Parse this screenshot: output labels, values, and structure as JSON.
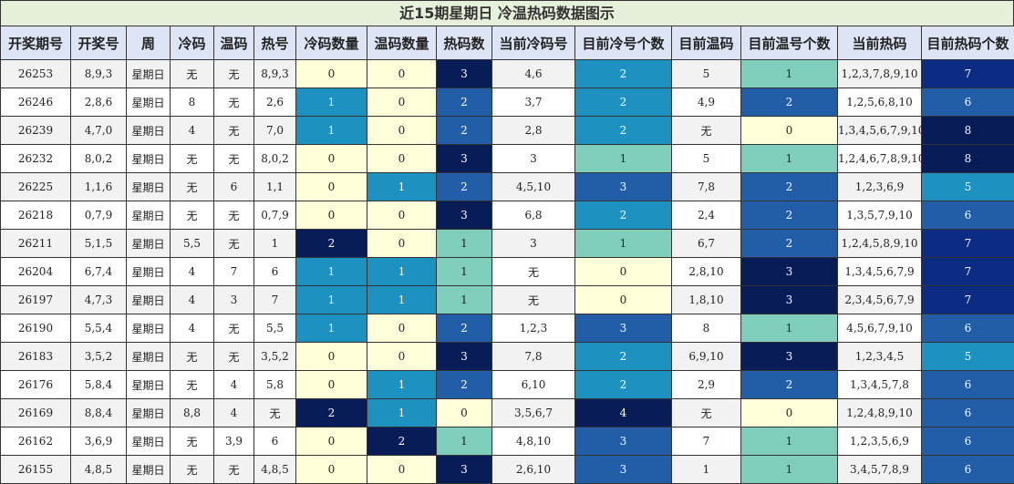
{
  "chart_data": {
    "type": "table",
    "title": "近15期星期日 冷温热码数据图示",
    "columns": [
      "开奖期号",
      "开奖号",
      "周",
      "冷码",
      "温码",
      "热号",
      "冷码数量",
      "温码数量",
      "热码数",
      "当前冷码号",
      "目前冷号个数",
      "目前温码",
      "目前温号个数",
      "当前热码",
      "目前热码个数"
    ],
    "rows": [
      [
        "26253",
        "8,9,3",
        "星期日",
        "无",
        "无",
        "8,9,3",
        "0",
        "0",
        "3",
        "4,6",
        "2",
        "5",
        "1",
        "1,2,3,7,8,9,10",
        "7"
      ],
      [
        "26246",
        "2,8,6",
        "星期日",
        "8",
        "无",
        "2,6",
        "1",
        "0",
        "2",
        "3,7",
        "2",
        "4,9",
        "2",
        "1,2,5,6,8,10",
        "6"
      ],
      [
        "26239",
        "4,7,0",
        "星期日",
        "4",
        "无",
        "7,0",
        "1",
        "0",
        "2",
        "2,8",
        "2",
        "无",
        "0",
        "1,3,4,5,6,7,9,10",
        "8"
      ],
      [
        "26232",
        "8,0,2",
        "星期日",
        "无",
        "无",
        "8,0,2",
        "0",
        "0",
        "3",
        "3",
        "1",
        "5",
        "1",
        "1,2,4,6,7,8,9,10",
        "8"
      ],
      [
        "26225",
        "1,1,6",
        "星期日",
        "无",
        "6",
        "1,1",
        "0",
        "1",
        "2",
        "4,5,10",
        "3",
        "7,8",
        "2",
        "1,2,3,6,9",
        "5"
      ],
      [
        "26218",
        "0,7,9",
        "星期日",
        "无",
        "无",
        "0,7,9",
        "0",
        "0",
        "3",
        "6,8",
        "2",
        "2,4",
        "2",
        "1,3,5,7,9,10",
        "6"
      ],
      [
        "26211",
        "5,1,5",
        "星期日",
        "5,5",
        "无",
        "1",
        "2",
        "0",
        "1",
        "3",
        "1",
        "6,7",
        "2",
        "1,2,4,5,8,9,10",
        "7"
      ],
      [
        "26204",
        "6,7,4",
        "星期日",
        "4",
        "7",
        "6",
        "1",
        "1",
        "1",
        "无",
        "0",
        "2,8,10",
        "3",
        "1,3,4,5,6,7,9",
        "7"
      ],
      [
        "26197",
        "4,7,3",
        "星期日",
        "4",
        "3",
        "7",
        "1",
        "1",
        "1",
        "无",
        "0",
        "1,8,10",
        "3",
        "2,3,4,5,6,7,9",
        "7"
      ],
      [
        "26190",
        "5,5,4",
        "星期日",
        "4",
        "无",
        "5,5",
        "1",
        "0",
        "2",
        "1,2,3",
        "3",
        "8",
        "1",
        "4,5,6,7,9,10",
        "6"
      ],
      [
        "26183",
        "3,5,2",
        "星期日",
        "无",
        "无",
        "3,5,2",
        "0",
        "0",
        "3",
        "7,8",
        "2",
        "6,9,10",
        "3",
        "1,2,3,4,5",
        "5"
      ],
      [
        "26176",
        "5,8,4",
        "星期日",
        "无",
        "4",
        "5,8",
        "0",
        "1",
        "2",
        "6,10",
        "2",
        "2,9",
        "2",
        "1,3,4,5,7,8",
        "6"
      ],
      [
        "26169",
        "8,8,4",
        "星期日",
        "8,8",
        "4",
        "无",
        "2",
        "1",
        "0",
        "3,5,6,7",
        "4",
        "无",
        "0",
        "1,2,4,8,9,10",
        "6"
      ],
      [
        "26162",
        "3,6,9",
        "星期日",
        "无",
        "3,9",
        "6",
        "0",
        "2",
        "1",
        "4,8,10",
        "3",
        "7",
        "1",
        "1,2,3,5,6,9",
        "6"
      ],
      [
        "26155",
        "4,8,5",
        "星期日",
        "无",
        "无",
        "4,8,5",
        "0",
        "0",
        "3",
        "2,6,10",
        "3",
        "1",
        "1",
        "3,4,5,7,8,9",
        "6"
      ]
    ],
    "heatmap_columns": [
      6,
      7,
      8,
      10,
      12,
      14
    ],
    "colormap": [
      "#ffffd9",
      "#c7e9b4",
      "#7fcdbb",
      "#41b6c4",
      "#1d91c0",
      "#225ea8",
      "#0c2c84",
      "#081d58"
    ]
  }
}
